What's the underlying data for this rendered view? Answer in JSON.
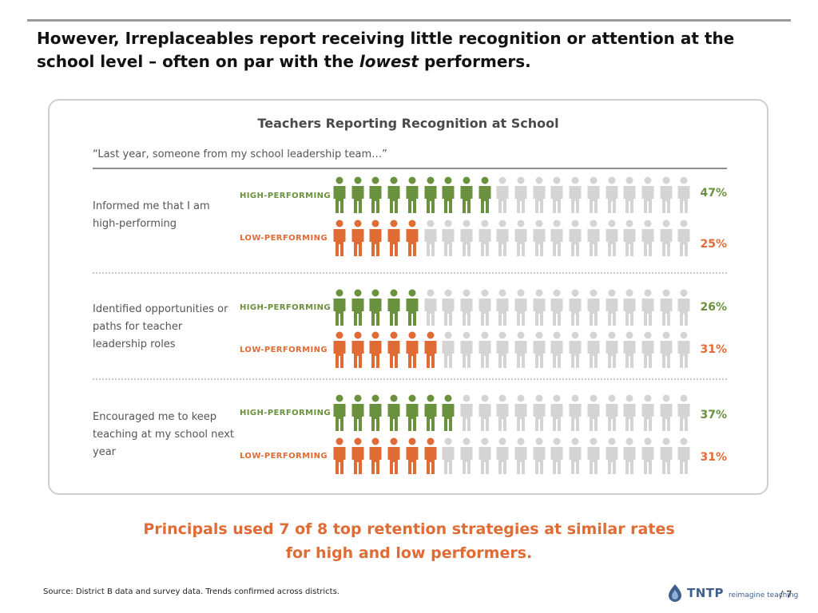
{
  "slide": {
    "title_part1": "However, Irreplaceables report receiving little recognition or attention at the school level – often on par with the ",
    "title_emphasis": "lowest",
    "title_part2": " performers.",
    "callout_line1": "Principals used 7 of 8 top retention strategies at similar rates",
    "callout_line2": "for high and low performers.",
    "source": "Source: District B data and survey data. Trends confirmed across districts.",
    "page_prefix": "/ ",
    "page_number": "7"
  },
  "logo": {
    "word": "TNTP",
    "tagline": "reimagine teaching",
    "color": "#3f5f8c"
  },
  "colors": {
    "high": "#6a913d",
    "low": "#e06b35",
    "inactive": "#d4d4d4"
  },
  "chart_data": {
    "type": "pictograph",
    "title": "Teachers Reporting Recognition at School",
    "subtitle": "“Last year, someone from my school leadership team…”",
    "icons_per_row": 20,
    "icon_name": "person-icon",
    "series": [
      {
        "name": "HIGH-PERFORMING",
        "color": "#6a913d"
      },
      {
        "name": "LOW-PERFORMING",
        "color": "#e06b35"
      }
    ],
    "categories": [
      {
        "label": "Informed me that I am high-performing",
        "high": {
          "value": 47,
          "text": "47%"
        },
        "low": {
          "value": 25,
          "text": "25%"
        }
      },
      {
        "label": "Identified opportunities or paths for teacher leadership roles",
        "high": {
          "value": 26,
          "text": "26%"
        },
        "low": {
          "value": 31,
          "text": "31%"
        }
      },
      {
        "label": "Encouraged me to keep teaching at my school next year",
        "high": {
          "value": 37,
          "text": "37%"
        },
        "low": {
          "value": 31,
          "text": "31%"
        }
      }
    ]
  }
}
